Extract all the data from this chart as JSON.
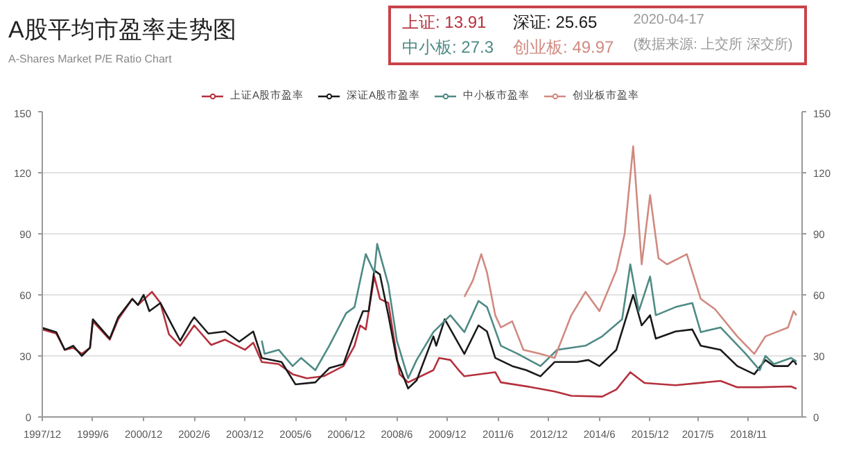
{
  "chart_data": {
    "type": "line",
    "title": "A股平均市盈率走势图",
    "subtitle": "A-Shares Market P/E Ratio Chart",
    "annotations": [
      "上证: 13.91",
      "深证: 25.65",
      "中小板: 27.3",
      "创业板: 49.97",
      "2020-04-17",
      "(数据来源: 上交所 深交所)"
    ],
    "legend": "top",
    "grid": "y",
    "xlim": [
      "1997-12",
      "2020-06"
    ],
    "xticks": [
      {
        "value": "1997-12",
        "label": "1997/12"
      },
      {
        "value": "1999-06",
        "label": "1999/6"
      },
      {
        "value": "2000-12",
        "label": "2000/12"
      },
      {
        "value": "2002-06",
        "label": "2002/6"
      },
      {
        "value": "2003-12",
        "label": "2003/12"
      },
      {
        "value": "2005-06",
        "label": "2005/6"
      },
      {
        "value": "2006-12",
        "label": "2006/12"
      },
      {
        "value": "2008-06",
        "label": "2008/6"
      },
      {
        "value": "2009-12",
        "label": "2009/12"
      },
      {
        "value": "2011-06",
        "label": "2011/6"
      },
      {
        "value": "2012-12",
        "label": "2012/12"
      },
      {
        "value": "2014-06",
        "label": "2014/6"
      },
      {
        "value": "2015-12",
        "label": "2015/12"
      },
      {
        "value": "2017-05",
        "label": "2017/5"
      },
      {
        "value": "2018-11",
        "label": "2018/11"
      }
    ],
    "ylim": [
      0,
      150
    ],
    "yticks": [
      0,
      30,
      60,
      90,
      120,
      150
    ],
    "y2lim": [
      0,
      150
    ],
    "y2ticks": [
      0,
      30,
      60,
      90,
      120,
      150
    ],
    "series": [
      {
        "name": "上证A股市盈率",
        "color": "#b5303c",
        "x": [
          "1997-12",
          "1998-05",
          "1998-08",
          "1998-11",
          "1999-02",
          "1999-05",
          "1999-06",
          "1999-12",
          "2000-03",
          "2000-08",
          "2000-10",
          "2001-03",
          "2001-06",
          "2001-09",
          "2002-01",
          "2002-06",
          "2002-12",
          "2003-05",
          "2003-12",
          "2004-03",
          "2004-06",
          "2004-12",
          "2005-05",
          "2005-10",
          "2006-04",
          "2006-11",
          "2007-03",
          "2007-05",
          "2007-07",
          "2007-10",
          "2007-12",
          "2008-03",
          "2008-07",
          "2008-10",
          "2009-07",
          "2009-09",
          "2010-01",
          "2010-04",
          "2010-06",
          "2011-05",
          "2011-07",
          "2012-06",
          "2013-02",
          "2013-08",
          "2014-07",
          "2014-12",
          "2015-05",
          "2015-10",
          "2016-09",
          "2018-01",
          "2018-07",
          "2019-03",
          "2020-02",
          "2020-04"
        ],
        "values": [
          43,
          41,
          33,
          34,
          31,
          34,
          47,
          38,
          48,
          58,
          55,
          61.5,
          56,
          40.6,
          35,
          45,
          35.4,
          38,
          33,
          36.5,
          27,
          26,
          21,
          19,
          20,
          25,
          35,
          45,
          43,
          69,
          58,
          56,
          21,
          17,
          23,
          29,
          28,
          23,
          20,
          22,
          17,
          14.6,
          12.5,
          10.4,
          10,
          13.5,
          22,
          16.7,
          15.6,
          17.7,
          14.6,
          14.6,
          15,
          13.91
        ]
      },
      {
        "name": "深证A股市盈率",
        "color": "#1a1a1a",
        "x": [
          "1997-12",
          "1998-05",
          "1998-08",
          "1998-11",
          "1999-02",
          "1999-05",
          "1999-06",
          "1999-12",
          "2000-03",
          "2000-08",
          "2000-10",
          "2000-12",
          "2001-02",
          "2001-06",
          "2001-09",
          "2002-01",
          "2002-05",
          "2002-06",
          "2002-11",
          "2003-05",
          "2003-10",
          "2004-03",
          "2004-06",
          "2005-01",
          "2005-06",
          "2006-01",
          "2006-06",
          "2006-11",
          "2007-04",
          "2007-06",
          "2007-08",
          "2007-10",
          "2007-12",
          "2008-03",
          "2008-06",
          "2008-10",
          "2009-01",
          "2009-07",
          "2009-08",
          "2009-11",
          "2010-06",
          "2010-11",
          "2011-02",
          "2011-05",
          "2011-11",
          "2012-04",
          "2012-09",
          "2013-02",
          "2013-10",
          "2014-02",
          "2014-06",
          "2014-12",
          "2015-06",
          "2015-09",
          "2015-12",
          "2016-02",
          "2016-09",
          "2017-03",
          "2017-06",
          "2018-01",
          "2018-07",
          "2019-01",
          "2019-05",
          "2019-08",
          "2020-01",
          "2020-03",
          "2020-04"
        ],
        "values": [
          43.8,
          41.7,
          33,
          35,
          30,
          34,
          48,
          38.5,
          49,
          58,
          55,
          60,
          52,
          56,
          48,
          37.5,
          47,
          49,
          41,
          42,
          37,
          42,
          29,
          27,
          16,
          17,
          24,
          26,
          45,
          52,
          52,
          72,
          70,
          50,
          28,
          14,
          18,
          39.6,
          35,
          48,
          31,
          45,
          42,
          29,
          25,
          23,
          20,
          27,
          27,
          28,
          25,
          33,
          60,
          45,
          50,
          38.5,
          42,
          43,
          35,
          33,
          25,
          21,
          28,
          25,
          25,
          28,
          25.65
        ]
      },
      {
        "name": "中小板市盈率",
        "color": "#4e8a85",
        "x": [
          "2004-06",
          "2004-07",
          "2004-12",
          "2005-05",
          "2005-08",
          "2006-01",
          "2006-06",
          "2006-12",
          "2007-03",
          "2007-07",
          "2007-10",
          "2007-11",
          "2008-03",
          "2008-06",
          "2008-10",
          "2009-01",
          "2009-07",
          "2010-01",
          "2010-06",
          "2010-11",
          "2011-02",
          "2011-07",
          "2012-01",
          "2012-09",
          "2013-03",
          "2014-01",
          "2014-07",
          "2015-02",
          "2015-05",
          "2015-08",
          "2015-12",
          "2016-02",
          "2016-09",
          "2017-03",
          "2017-06",
          "2018-01",
          "2018-10",
          "2019-03",
          "2019-05",
          "2019-08",
          "2020-02",
          "2020-04"
        ],
        "values": [
          37.5,
          31,
          33,
          25,
          29,
          23,
          35,
          51,
          54,
          80,
          71,
          85,
          65,
          37.5,
          19,
          28,
          41.7,
          50,
          41.7,
          57,
          54,
          35,
          31,
          25,
          33,
          35,
          39.6,
          48,
          75,
          52,
          69,
          50,
          54,
          56,
          41.7,
          44,
          31,
          23,
          30,
          26,
          29,
          27.3
        ]
      },
      {
        "name": "创业板市盈率",
        "color": "#d08a80",
        "x": [
          "2010-06",
          "2010-09",
          "2010-12",
          "2011-02",
          "2011-05",
          "2011-07",
          "2011-11",
          "2012-03",
          "2012-09",
          "2013-02",
          "2013-08",
          "2014-01",
          "2014-06",
          "2014-12",
          "2015-03",
          "2015-06",
          "2015-09",
          "2015-12",
          "2016-03",
          "2016-06",
          "2017-01",
          "2017-06",
          "2017-11",
          "2018-07",
          "2019-01",
          "2019-05",
          "2020-01",
          "2020-03",
          "2020-04"
        ],
        "values": [
          59,
          67,
          80,
          71,
          50,
          44,
          47,
          33,
          31,
          29,
          50,
          61.5,
          52,
          72,
          90,
          133,
          75,
          109,
          78,
          75,
          80,
          58,
          53,
          39.6,
          31,
          39.6,
          44,
          52,
          49.97
        ]
      }
    ]
  }
}
